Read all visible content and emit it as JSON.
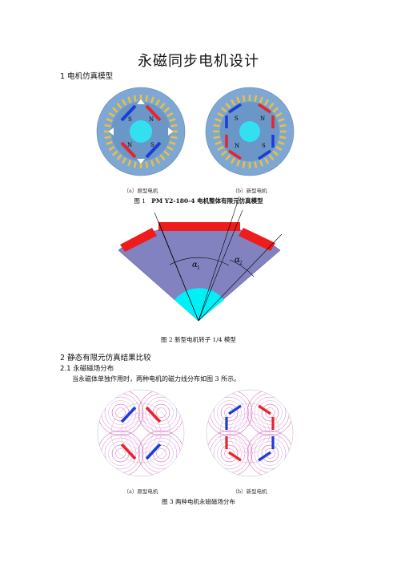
{
  "title": "永磁同步电机设计",
  "sec1": {
    "heading": "1  电机仿真模型"
  },
  "fig1": {
    "sub_a": "（a）原型电机",
    "sub_b": "（b）新型电机",
    "caption_prefix": "图 1",
    "caption_text": "PM Y2-180-4 电机整体有限元仿真模型",
    "pole_labels": [
      "S",
      "N",
      "N",
      "S"
    ]
  },
  "fig2": {
    "caption": "图 2    新型电机转子 1/4 模型",
    "alpha1": "α",
    "alpha1_sub": "1",
    "alpha2": "α",
    "alpha2_sub": "2"
  },
  "sec2": {
    "heading": "2  静态有限元仿真结果比较",
    "sub_heading": "2.1  永磁磁场分布",
    "paragraph": "当永磁体单独作用时，两种电机的磁力线分布如图 3 所示。"
  },
  "fig3": {
    "sub_a": "（a）原型电机",
    "sub_b": "（b）新型电机",
    "caption": "图 3    两种电机永磁磁场分布"
  },
  "colors": {
    "stator": "#7ea7d4",
    "rotor": "#6a96c8",
    "shaft": "#33e0f0",
    "magnet_red": "#e8242a",
    "magnet_blue": "#1c3cd8",
    "sector": "#8282c0"
  }
}
